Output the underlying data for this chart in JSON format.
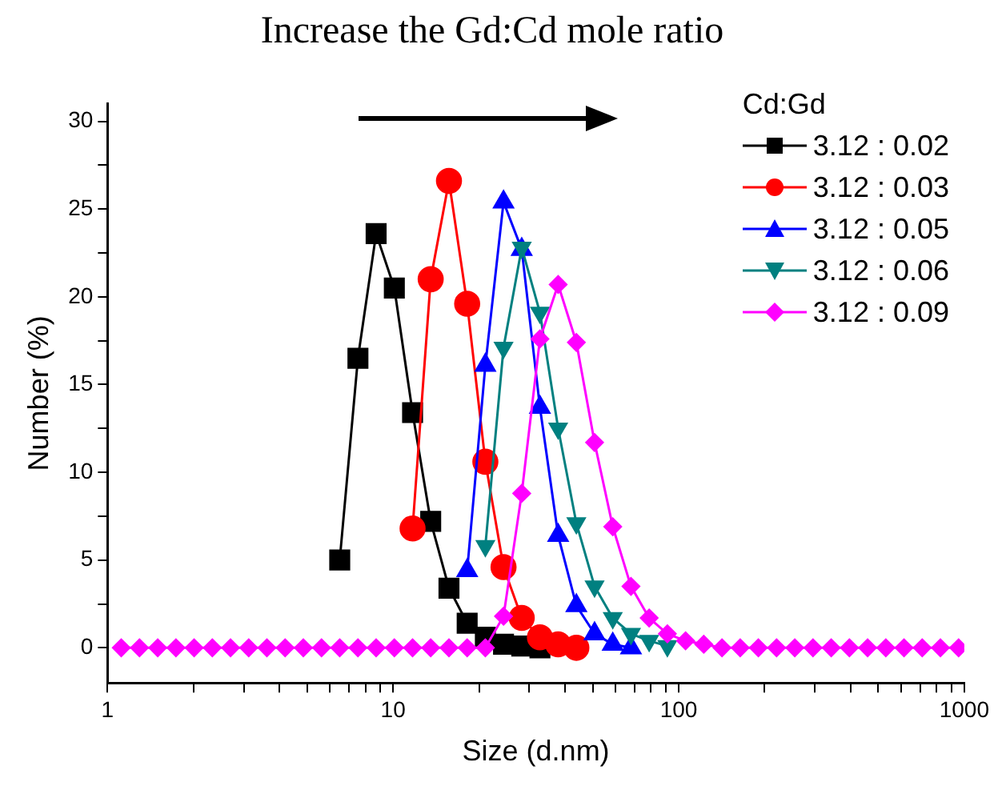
{
  "chart_data": {
    "type": "line",
    "title": "Increase the Gd:Cd mole ratio",
    "xlabel": "Size (d.nm)",
    "ylabel": "Number (%)",
    "legend_title": "Cd:Gd",
    "legend": "top right",
    "log": "x",
    "grid": false,
    "line_style": "solid",
    "x": [
      1.117,
      1.294,
      1.499,
      1.736,
      2.01,
      2.328,
      2.696,
      3.122,
      3.615,
      4.187,
      4.849,
      5.615,
      6.503,
      7.531,
      8.721,
      10.1,
      11.7,
      13.54,
      15.69,
      18.17,
      21.04,
      24.36,
      28.21,
      32.67,
      37.84,
      43.82,
      50.75,
      58.77,
      68.06,
      78.82,
      91.28,
      105.7,
      122.4,
      141.8,
      164.2,
      190.1,
      220.2,
      255,
      295.3,
      342,
      396.1,
      458.7,
      531.2,
      615.1,
      712.4,
      825,
      955.4
    ],
    "xlim": [
      1,
      1000
    ],
    "xticks": [
      1,
      {
        "value": 2,
        "label": null
      },
      {
        "value": 3,
        "label": null
      },
      {
        "value": 4,
        "label": null
      },
      {
        "value": 5,
        "label": null
      },
      {
        "value": 6,
        "label": null
      },
      {
        "value": 7,
        "label": null
      },
      {
        "value": 8,
        "label": null
      },
      {
        "value": 9,
        "label": null
      },
      10,
      {
        "value": 20,
        "label": null
      },
      {
        "value": 30,
        "label": null
      },
      {
        "value": 40,
        "label": null
      },
      {
        "value": 50,
        "label": null
      },
      {
        "value": 60,
        "label": null
      },
      {
        "value": 70,
        "label": null
      },
      {
        "value": 80,
        "label": null
      },
      {
        "value": 90,
        "label": null
      },
      100,
      {
        "value": 200,
        "label": null
      },
      {
        "value": 300,
        "label": null
      },
      {
        "value": 400,
        "label": null
      },
      {
        "value": 500,
        "label": null
      },
      {
        "value": 600,
        "label": null
      },
      {
        "value": 700,
        "label": null
      },
      {
        "value": 800,
        "label": null
      },
      {
        "value": 900,
        "label": null
      },
      1000
    ],
    "ylim": [
      -2,
      31
    ],
    "yticks": [
      0,
      {
        "value": 2.5,
        "label": null
      },
      5,
      {
        "value": 7.5,
        "label": null
      },
      10,
      {
        "value": 12.5,
        "label": null
      },
      15,
      {
        "value": 17.5,
        "label": null
      },
      20,
      {
        "value": 22.5,
        "label": null
      },
      25,
      {
        "value": 27.5,
        "label": null
      },
      30
    ],
    "series": [
      {
        "name": "3.12 : 0.02",
        "color": "#000000",
        "marker": "square",
        "values": [
          null,
          null,
          null,
          null,
          null,
          null,
          null,
          null,
          null,
          null,
          null,
          null,
          5.0,
          16.5,
          23.6,
          20.5,
          13.4,
          7.2,
          3.4,
          1.4,
          0.6,
          0.2,
          0.1,
          0,
          null,
          null,
          null,
          null,
          null,
          null,
          null,
          null,
          null,
          null,
          null,
          null,
          null,
          null,
          null,
          null,
          null,
          null,
          null,
          null,
          null,
          null,
          null
        ]
      },
      {
        "name": "3.12 : 0.03",
        "color": "#ff0000",
        "marker": "circle",
        "values": [
          null,
          null,
          null,
          null,
          null,
          null,
          null,
          null,
          null,
          null,
          null,
          null,
          null,
          null,
          null,
          null,
          6.8,
          21.0,
          26.6,
          19.6,
          10.6,
          4.6,
          1.7,
          0.6,
          0.2,
          0,
          null,
          null,
          null,
          null,
          null,
          null,
          null,
          null,
          null,
          null,
          null,
          null,
          null,
          null,
          null,
          null,
          null,
          null,
          null,
          null,
          null
        ]
      },
      {
        "name": "3.12 : 0.05",
        "color": "#0000ff",
        "marker": "triangle",
        "values": [
          null,
          null,
          null,
          null,
          null,
          null,
          null,
          null,
          null,
          null,
          null,
          null,
          null,
          null,
          null,
          null,
          null,
          null,
          null,
          4.4,
          16.1,
          25.4,
          22.7,
          13.7,
          6.4,
          2.4,
          0.8,
          0.2,
          0,
          null,
          null,
          null,
          null,
          null,
          null,
          null,
          null,
          null,
          null,
          null,
          null,
          null,
          null,
          null,
          null,
          null,
          null
        ]
      },
      {
        "name": "3.12 : 0.06",
        "color": "#008080",
        "marker": "triangle-down",
        "values": [
          null,
          null,
          null,
          null,
          null,
          null,
          null,
          null,
          null,
          null,
          null,
          null,
          null,
          null,
          null,
          null,
          null,
          null,
          null,
          null,
          5.8,
          17.1,
          22.8,
          19.1,
          12.5,
          7.1,
          3.5,
          1.7,
          0.8,
          0.4,
          0.1,
          null,
          null,
          null,
          null,
          null,
          null,
          null,
          null,
          null,
          null,
          null,
          null,
          null,
          null,
          null,
          null
        ]
      },
      {
        "name": "3.12 : 0.09",
        "color": "#ff00ff",
        "marker": "diamond",
        "values": [
          0,
          0,
          0,
          0,
          0,
          0,
          0,
          0,
          0,
          0,
          0,
          0,
          0,
          0,
          0,
          0,
          0,
          0,
          0,
          0,
          0,
          1.8,
          8.8,
          17.6,
          20.7,
          17.4,
          11.7,
          6.9,
          3.5,
          1.7,
          0.8,
          0.4,
          0.2,
          0,
          0,
          0,
          0,
          0,
          0,
          0,
          0,
          0,
          0,
          0,
          0,
          0,
          0
        ]
      }
    ]
  }
}
